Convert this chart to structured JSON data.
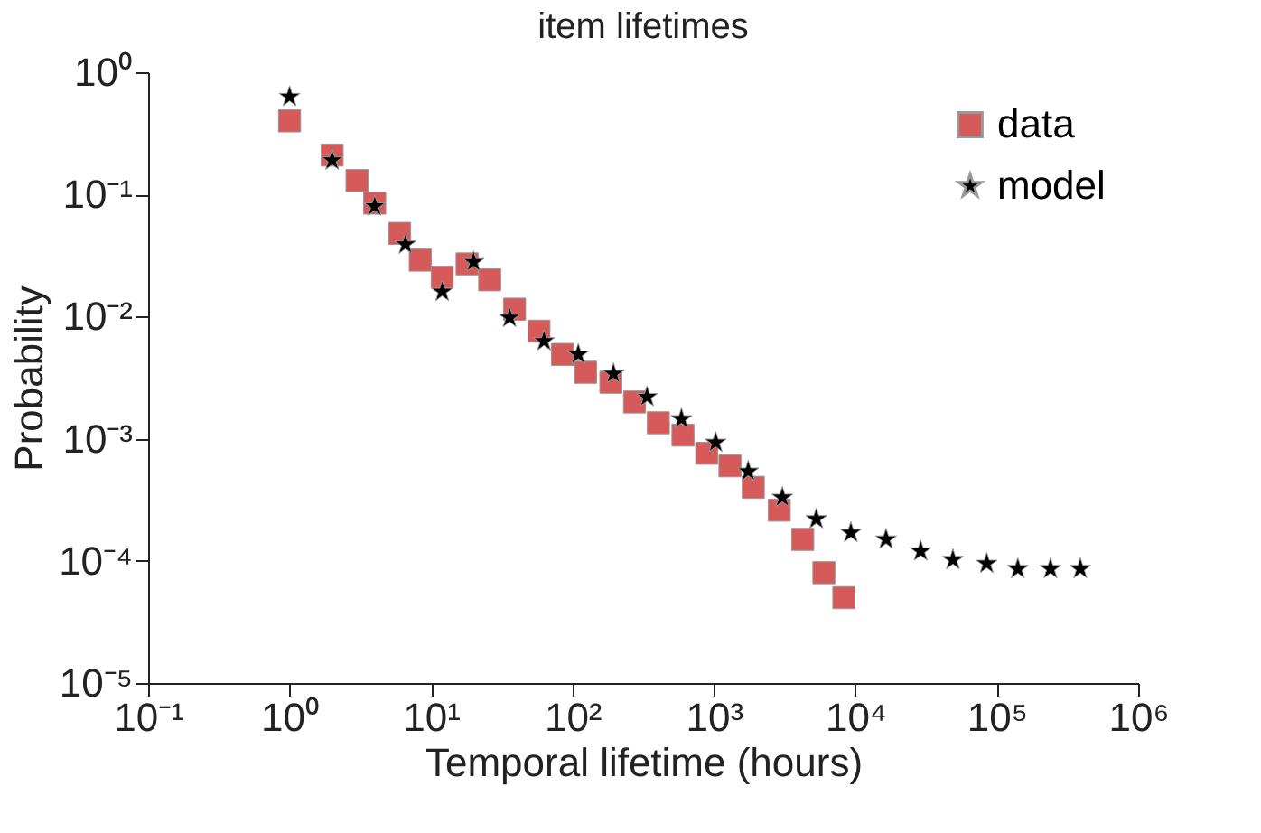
{
  "chart_data": {
    "type": "scatter",
    "title": "item lifetimes",
    "xlabel": "Temporal lifetime (hours)",
    "ylabel": "Probability",
    "log": "xy",
    "grid": false,
    "legend": "top right",
    "xlim": [
      0.1,
      1000000
    ],
    "ylim": [
      1e-05,
      1
    ],
    "xticks": [
      {
        "value": 0.1,
        "label": "10⁻¹"
      },
      {
        "value": 1,
        "label": "10⁰"
      },
      {
        "value": 10,
        "label": "10¹"
      },
      {
        "value": 100,
        "label": "10²"
      },
      {
        "value": 1000,
        "label": "10³"
      },
      {
        "value": 10000,
        "label": "10⁴"
      },
      {
        "value": 100000,
        "label": "10⁵"
      },
      {
        "value": 1000000,
        "label": "10⁶"
      }
    ],
    "yticks": [
      {
        "value": 1e-05,
        "label": "10⁻⁵"
      },
      {
        "value": 0.0001,
        "label": "10⁻⁴"
      },
      {
        "value": 0.001,
        "label": "10⁻³"
      },
      {
        "value": 0.01,
        "label": "10⁻²"
      },
      {
        "value": 0.1,
        "label": "10⁻¹"
      },
      {
        "value": 1,
        "label": "10⁰"
      }
    ],
    "series": [
      {
        "name": "data",
        "color": "#d65a5a",
        "marker": "square",
        "x": [
          1,
          2,
          3,
          4,
          6,
          8.4,
          12,
          18,
          26,
          39,
          58,
          85,
          124,
          187,
          275,
          405,
          605,
          890,
          1300,
          1900,
          2900,
          4250,
          6000,
          8300
        ],
        "values": [
          0.4,
          0.21,
          0.13,
          0.085,
          0.048,
          0.029,
          0.021,
          0.027,
          0.02,
          0.0115,
          0.0076,
          0.0049,
          0.0035,
          0.0029,
          0.002,
          0.00135,
          0.00107,
          0.00076,
          0.0006,
          0.0004,
          0.00026,
          0.00015,
          8e-05,
          5e-05
        ]
      },
      {
        "name": "model",
        "color": "#000000",
        "marker": "star",
        "x": [
          1,
          2,
          4,
          6.6,
          12,
          20,
          36,
          63,
          110,
          195,
          337,
          590,
          1030,
          1750,
          3050,
          5300,
          9300,
          16500,
          29000,
          49000,
          85000,
          141000,
          240000,
          390000
        ],
        "values": [
          0.63,
          0.19,
          0.08,
          0.039,
          0.016,
          0.028,
          0.0098,
          0.0063,
          0.0049,
          0.0034,
          0.0022,
          0.00145,
          0.00093,
          0.00054,
          0.00033,
          0.00022,
          0.00017,
          0.00015,
          0.00012,
          0.000102,
          9.5e-05,
          8.6e-05,
          8.6e-05,
          8.6e-05
        ]
      }
    ]
  }
}
